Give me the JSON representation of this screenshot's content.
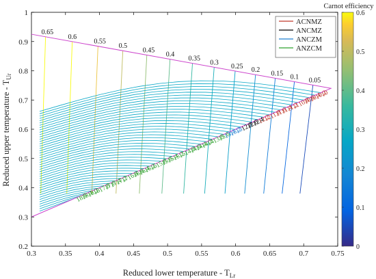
{
  "chart_data": {
    "type": "line",
    "xlabel": "Reduced lower temperature - T",
    "xlabel_sub": "Lr",
    "ylabel": "Reduced upper temperature - T",
    "ylabel_sub": "Ur",
    "xlim": [
      0.3,
      0.75
    ],
    "ylim": [
      0.2,
      1.0
    ],
    "x_ticks": [
      "0.3",
      "0.35",
      "0.4",
      "0.45",
      "0.5",
      "0.55",
      "0.6",
      "0.65",
      "0.7",
      "0.75"
    ],
    "y_ticks": [
      "0.2",
      "0.3",
      "0.4",
      "0.5",
      "0.6",
      "0.7",
      "0.8",
      "0.9",
      "1"
    ],
    "grid": false,
    "colorbar": {
      "title": "Carnot efficiency",
      "min": 0,
      "max": 0.6,
      "ticks": [
        "0",
        "0.1",
        "0.2",
        "0.3",
        "0.4",
        "0.5",
        "0.6"
      ],
      "colormap": "parula"
    },
    "legend": {
      "placement": "top-right",
      "series": [
        {
          "name": "ACNMZ",
          "color": "#c0392b"
        },
        {
          "name": "ANCMZ",
          "color": "#000000"
        },
        {
          "name": "ANCZM",
          "color": "#1e7fd0"
        },
        {
          "name": "ANZCM",
          "color": "#2ca02c"
        }
      ]
    },
    "boundary": {
      "color": "#cc44cc",
      "vertex": [
        0.74,
        0.74
      ],
      "upper_start": [
        0.3,
        0.925
      ],
      "lower_start": [
        0.3,
        0.3
      ]
    },
    "efficiency_labels": [
      "0.65",
      "0.6",
      "0.55",
      "0.5",
      "0.45",
      "0.4",
      "0.35",
      "0.3",
      "0.25",
      "0.2",
      "0.15",
      "0.1",
      "0.05"
    ],
    "efficiency_values": [
      0.65,
      0.6,
      0.55,
      0.5,
      0.45,
      0.4,
      0.35,
      0.3,
      0.25,
      0.2,
      0.15,
      0.1,
      0.05
    ],
    "pressure_labels": [
      "10",
      "10.2",
      "10.4",
      "10.6",
      "10.8",
      "11",
      "11.2",
      "11.4",
      "11.6",
      "11.8",
      "12",
      "12.2",
      "12.4",
      "12.6",
      "12.8",
      "13",
      "13.2",
      "13.4",
      "13.6",
      "13.8",
      "14",
      "14.2",
      "14.4",
      "14.6",
      "14.8",
      "15",
      "15.2",
      "15.4",
      "15.6",
      "15.8",
      "16",
      "16.2",
      "16.4",
      "16.6",
      "16.8",
      "17",
      "17.2",
      "17.4",
      "17.6",
      "17.8",
      "18",
      "18.2",
      "18.4",
      "18.6"
    ],
    "pressure_values": [
      10,
      10.2,
      10.4,
      10.6,
      10.8,
      11,
      11.2,
      11.4,
      11.6,
      11.8,
      12,
      12.2,
      12.4,
      12.6,
      12.8,
      13,
      13.2,
      13.4,
      13.6,
      13.8,
      14,
      14.2,
      14.4,
      14.6,
      14.8,
      15,
      15.2,
      15.4,
      15.6,
      15.8,
      16,
      16.2,
      16.4,
      16.6,
      16.8,
      17,
      17.2,
      17.4,
      17.6,
      17.8,
      18,
      18.2,
      18.4,
      18.6
    ],
    "pressure_series_ranges": [
      {
        "series": "ACNMZ",
        "from": 10,
        "to": 12.2
      },
      {
        "series": "ANCMZ",
        "from": 12.4,
        "to": 12.8
      },
      {
        "series": "ANCZM",
        "from": 13,
        "to": 13.4
      },
      {
        "series": "ANZCM",
        "from": 13.6,
        "to": 18.6
      }
    ]
  }
}
